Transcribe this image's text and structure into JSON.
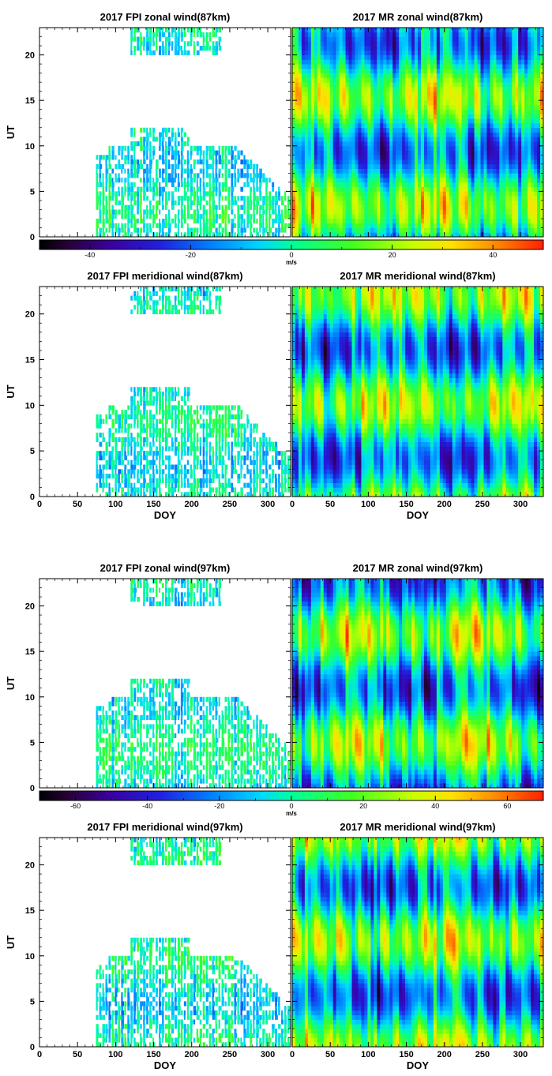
{
  "chart_data": [
    {
      "type": "heatmap",
      "title": "2017 FPI zonal wind(87km)",
      "instrument": "FPI",
      "ylabel": "UT",
      "xlabel": "",
      "xlim": [
        0,
        330
      ],
      "ylim": [
        0,
        23
      ],
      "yticks": [
        0,
        5,
        10,
        15,
        20
      ],
      "xticks": [],
      "coverage": [
        {
          "doy": [
            120,
            240
          ],
          "ut": [
            20,
            23
          ]
        },
        {
          "doy": [
            75,
            340
          ],
          "ut": [
            0,
            12
          ]
        }
      ],
      "colorbar_ref": 0
    },
    {
      "type": "heatmap",
      "title": "2017 MR zonal wind(87km)",
      "instrument": "MR",
      "ylabel": "",
      "xlabel": "",
      "xlim": [
        0,
        330
      ],
      "ylim": [
        0,
        23
      ],
      "yticks": [
        0,
        5,
        10,
        15,
        20
      ],
      "xticks": [],
      "colorbar_ref": 0
    },
    {
      "type": "heatmap",
      "title": "2017 FPI meridional wind(87km)",
      "instrument": "FPI",
      "ylabel": "UT",
      "xlabel": "DOY",
      "xlim": [
        0,
        330
      ],
      "ylim": [
        0,
        23
      ],
      "yticks": [
        0,
        5,
        10,
        15,
        20
      ],
      "xticks": [
        0,
        50,
        100,
        150,
        200,
        250,
        300
      ],
      "coverage": [
        {
          "doy": [
            120,
            240
          ],
          "ut": [
            20,
            23
          ]
        },
        {
          "doy": [
            75,
            340
          ],
          "ut": [
            0,
            12
          ]
        }
      ],
      "colorbar_ref": 0
    },
    {
      "type": "heatmap",
      "title": "2017 MR meridional wind(87km)",
      "instrument": "MR",
      "ylabel": "",
      "xlabel": "DOY",
      "xlim": [
        0,
        330
      ],
      "ylim": [
        0,
        23
      ],
      "yticks": [
        0,
        5,
        10,
        15,
        20
      ],
      "xticks": [
        0,
        50,
        100,
        150,
        200,
        250,
        300
      ],
      "colorbar_ref": 0
    },
    {
      "type": "heatmap",
      "title": "2017 FPI zonal wind(97km)",
      "instrument": "FPI",
      "ylabel": "UT",
      "xlabel": "",
      "xlim": [
        0,
        330
      ],
      "ylim": [
        0,
        23
      ],
      "yticks": [
        0,
        5,
        10,
        15,
        20
      ],
      "xticks": [],
      "coverage": [
        {
          "doy": [
            120,
            240
          ],
          "ut": [
            20,
            23
          ]
        },
        {
          "doy": [
            75,
            340
          ],
          "ut": [
            0,
            12
          ]
        }
      ],
      "colorbar_ref": 1
    },
    {
      "type": "heatmap",
      "title": "2017 MR zonal wind(97km)",
      "instrument": "MR",
      "ylabel": "",
      "xlabel": "",
      "xlim": [
        0,
        330
      ],
      "ylim": [
        0,
        23
      ],
      "yticks": [
        0,
        5,
        10,
        15,
        20
      ],
      "xticks": [],
      "colorbar_ref": 1
    },
    {
      "type": "heatmap",
      "title": "2017 FPI meridional wind(97km)",
      "instrument": "FPI",
      "ylabel": "UT",
      "xlabel": "DOY",
      "xlim": [
        0,
        330
      ],
      "ylim": [
        0,
        23
      ],
      "yticks": [
        0,
        5,
        10,
        15,
        20
      ],
      "xticks": [
        0,
        50,
        100,
        150,
        200,
        250,
        300
      ],
      "coverage": [
        {
          "doy": [
            120,
            240
          ],
          "ut": [
            20,
            23
          ]
        },
        {
          "doy": [
            75,
            340
          ],
          "ut": [
            0,
            12
          ]
        }
      ],
      "colorbar_ref": 1
    },
    {
      "type": "heatmap",
      "title": "2017 MR meridional wind(97km)",
      "instrument": "MR",
      "ylabel": "",
      "xlabel": "DOY",
      "xlim": [
        0,
        330
      ],
      "ylim": [
        0,
        23
      ],
      "yticks": [
        0,
        5,
        10,
        15,
        20
      ],
      "xticks": [
        0,
        50,
        100,
        150,
        200,
        250,
        300
      ],
      "colorbar_ref": 1
    }
  ],
  "colorbars": [
    {
      "unit": "m/s",
      "range": [
        -50,
        50
      ],
      "ticks": [
        -40,
        -20,
        0,
        20,
        40
      ]
    },
    {
      "unit": "m/s",
      "range": [
        -70,
        70
      ],
      "ticks": [
        -60,
        -40,
        -20,
        0,
        20,
        40,
        60
      ]
    }
  ],
  "colormap": {
    "stops": [
      [
        0.0,
        "#000000"
      ],
      [
        0.06,
        "#2a003a"
      ],
      [
        0.14,
        "#3a00a0"
      ],
      [
        0.24,
        "#2020e0"
      ],
      [
        0.34,
        "#0080ff"
      ],
      [
        0.44,
        "#00d8ff"
      ],
      [
        0.5,
        "#00ff9a"
      ],
      [
        0.62,
        "#40ff20"
      ],
      [
        0.74,
        "#c8ff00"
      ],
      [
        0.82,
        "#ffe000"
      ],
      [
        0.9,
        "#ff9000"
      ],
      [
        1.0,
        "#ff2000"
      ]
    ]
  }
}
